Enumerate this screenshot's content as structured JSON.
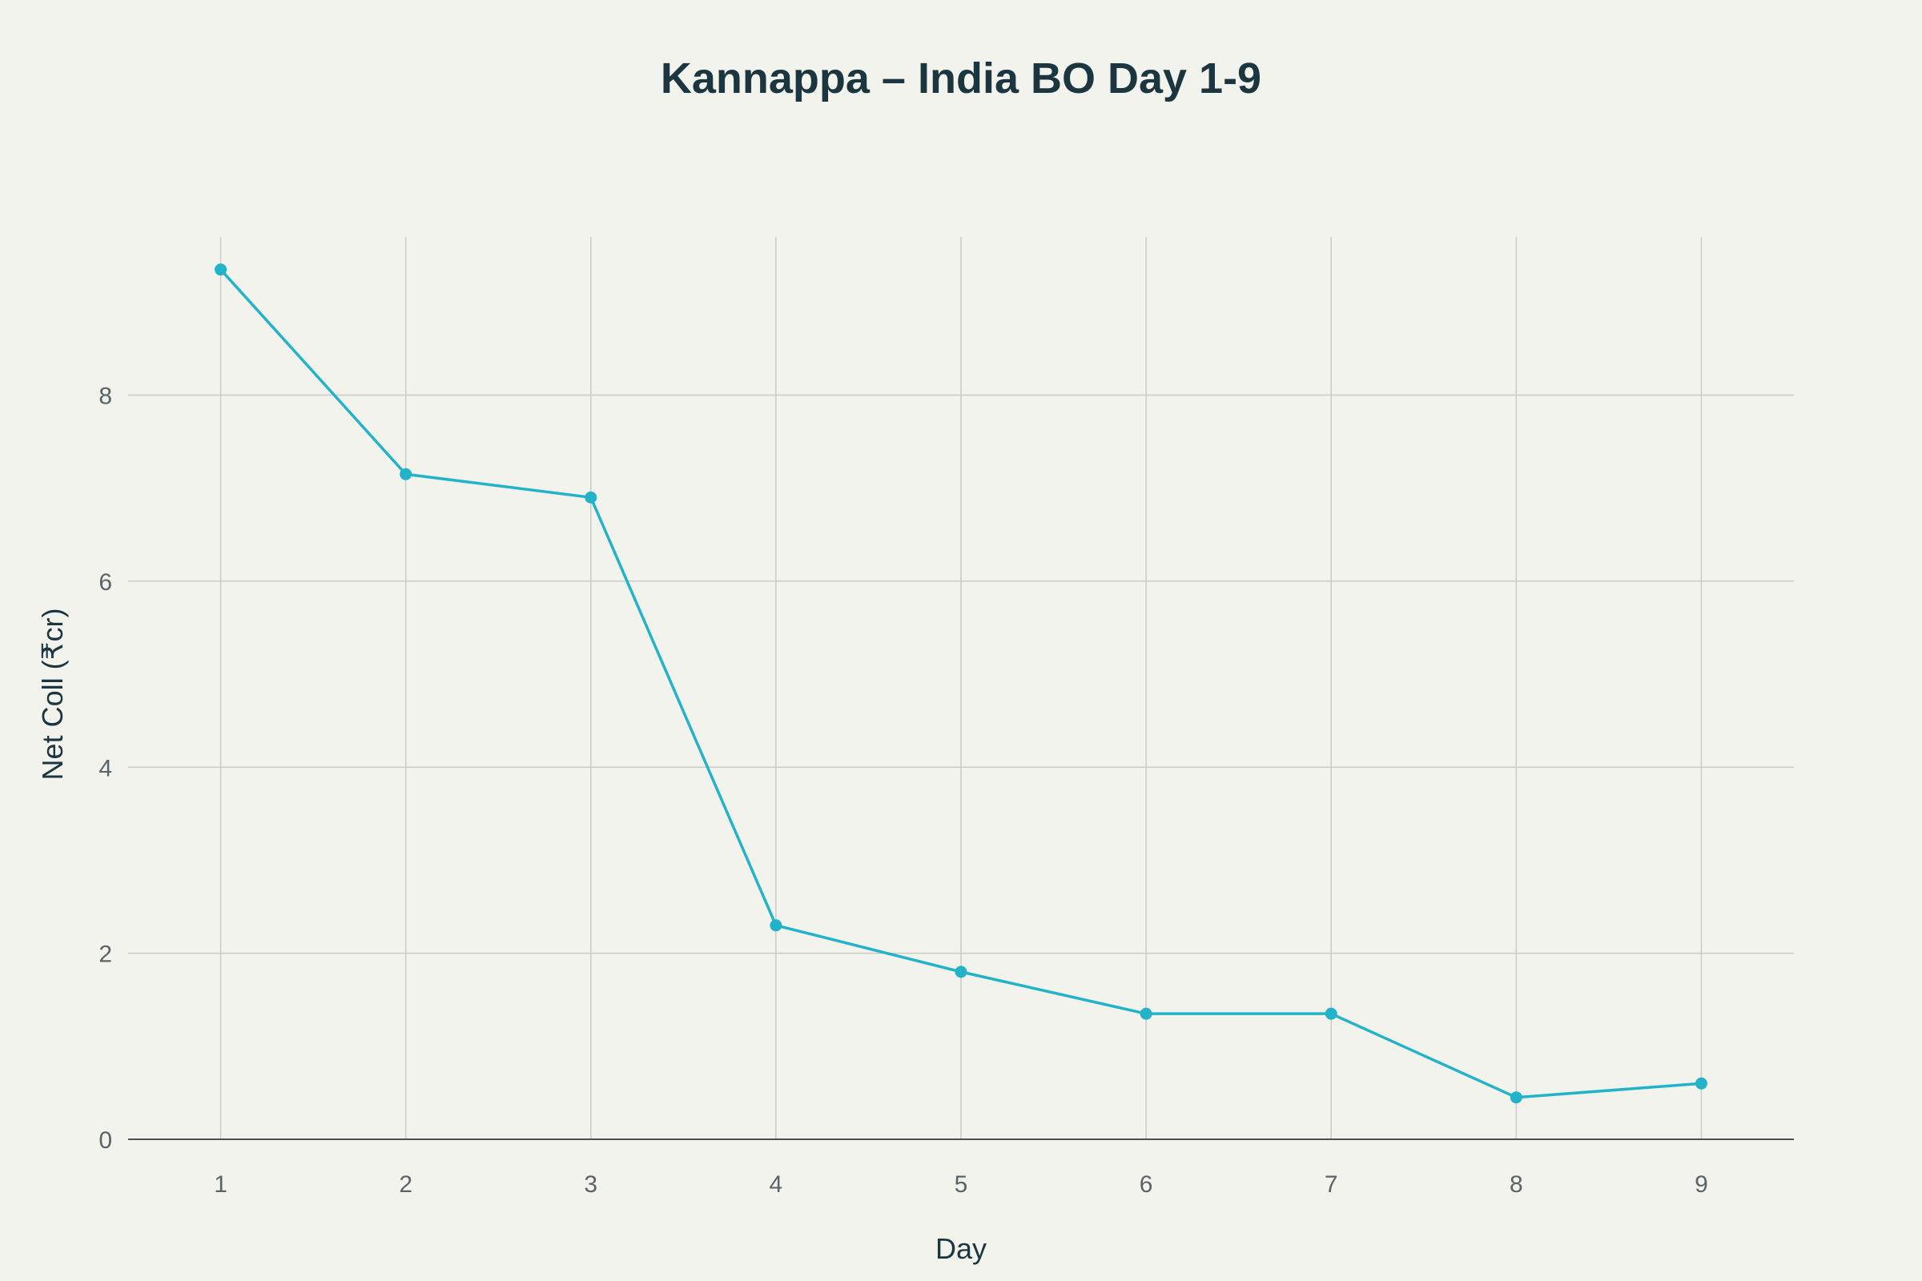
{
  "chart_data": {
    "type": "line",
    "title": "Kannappa – India BO Day 1-9",
    "xlabel": "Day",
    "ylabel": "Net Coll (₹cr)",
    "x": [
      1,
      2,
      3,
      4,
      5,
      6,
      7,
      8,
      9
    ],
    "xlim": [
      0.5,
      9.5
    ],
    "ylim": [
      0,
      9.7
    ],
    "yticks": [
      0,
      2,
      4,
      6,
      8
    ],
    "grid": true,
    "series": [
      {
        "values": [
          9.35,
          7.15,
          6.9,
          2.3,
          1.8,
          1.35,
          1.35,
          0.45,
          0.6
        ],
        "color": "#23b3c8"
      }
    ]
  }
}
